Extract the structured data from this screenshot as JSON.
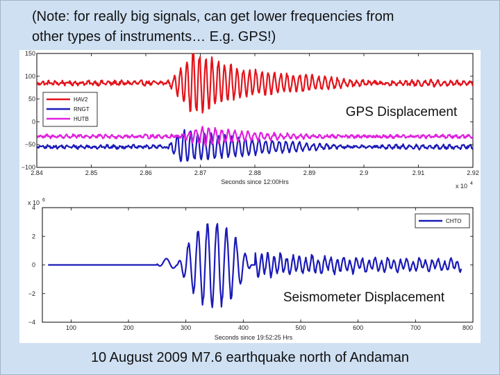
{
  "slide": {
    "note_line1": "(Note: for really big signals, can get lower frequencies from",
    "note_line2": "other types of instruments… E.g. GPS!)",
    "caption": "10 August 2009 M7.6 earthquake north of Andaman"
  },
  "chart_data": [
    {
      "type": "line",
      "title": "",
      "annotation": "GPS Displacement",
      "xlabel": "Seconds since 12:00Hrs",
      "x_exponent_label": "x 10",
      "x_exponent": "4",
      "ylabel": "",
      "xlim": [
        2.84,
        2.92
      ],
      "ylim": [
        -100,
        150
      ],
      "xticks": [
        "2.84",
        "2.85",
        "2.86",
        "2.87",
        "2.88",
        "2.89",
        "2.9",
        "2.91",
        "2.92"
      ],
      "yticks": [
        "150",
        "100",
        "50",
        "0",
        "−50",
        "−100"
      ],
      "legend_position": "upper-left",
      "colors": {
        "HAV2": "#e3131b",
        "RNGT": "#1a1ab8",
        "HUTB": "#e020e0"
      },
      "series": [
        {
          "name": "HAV2",
          "baseline": 85,
          "quiet_noise": 5,
          "max_amplitude": 75,
          "onset": 2.8638,
          "peak": 2.8685,
          "decay": 0.0135,
          "period": 0.00115,
          "phase": 0.0
        },
        {
          "name": "RNGT",
          "baseline": -55,
          "quiet_noise": 4,
          "max_amplitude": 42,
          "onset": 2.8632,
          "peak": 2.8665,
          "decay": 0.0145,
          "period": 0.00125,
          "phase": 1.3
        },
        {
          "name": "HUTB",
          "baseline": -32,
          "quiet_noise": 4,
          "max_amplitude": 25,
          "onset": 2.8645,
          "peak": 2.87,
          "decay": 0.014,
          "period": 0.0012,
          "phase": 2.4
        }
      ]
    },
    {
      "type": "line",
      "title": "",
      "annotation": "Seismometer Displacement",
      "xlabel": "Seconds since 19:52:25 Hrs",
      "y_exponent_label": "x 10",
      "y_exponent": "6",
      "ylabel": "",
      "xlim": [
        50,
        800
      ],
      "ylim": [
        -4,
        4
      ],
      "xticks": [
        "100",
        "200",
        "300",
        "400",
        "500",
        "600",
        "700",
        "800"
      ],
      "yticks": [
        "4",
        "2",
        "0",
        "−2",
        "−4"
      ],
      "legend_position": "upper-right",
      "colors": {
        "CHTO": "#1a1ab8"
      },
      "series": [
        {
          "name": "CHTO",
          "flat_until": 250,
          "first_bump": 270,
          "peak_positive": 3.2,
          "peak_negative": -3.3,
          "strong_start": 285,
          "strong_end": 420,
          "tail_amplitude": 0.35,
          "end": 780
        }
      ]
    }
  ]
}
